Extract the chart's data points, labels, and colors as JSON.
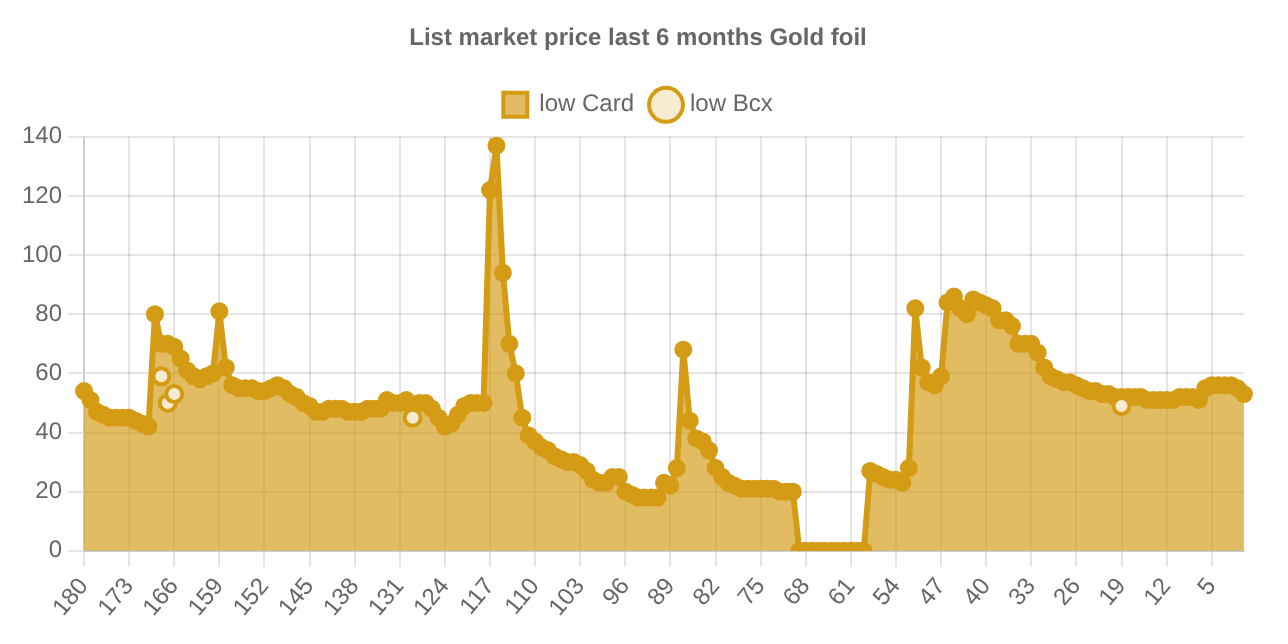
{
  "chart_data": {
    "type": "area",
    "title": "List market price last 6 months Gold foil",
    "categories": [
      "180",
      null,
      null,
      null,
      null,
      null,
      null,
      "173",
      null,
      null,
      null,
      null,
      null,
      null,
      "166",
      null,
      null,
      null,
      null,
      null,
      null,
      "159",
      null,
      null,
      null,
      null,
      null,
      null,
      "152",
      null,
      null,
      null,
      null,
      null,
      null,
      "145",
      null,
      null,
      null,
      null,
      null,
      null,
      "138",
      null,
      null,
      null,
      null,
      null,
      null,
      "131",
      null,
      null,
      null,
      null,
      null,
      null,
      "124",
      null,
      null,
      null,
      null,
      null,
      null,
      "117",
      null,
      null,
      null,
      null,
      null,
      null,
      "110",
      null,
      null,
      null,
      null,
      null,
      null,
      "103",
      null,
      null,
      null,
      null,
      null,
      null,
      "96",
      null,
      null,
      null,
      null,
      null,
      null,
      "89",
      null,
      null,
      null,
      null,
      null,
      null,
      "82",
      null,
      null,
      null,
      null,
      null,
      null,
      "75",
      null,
      null,
      null,
      null,
      null,
      null,
      "68",
      null,
      null,
      null,
      null,
      null,
      null,
      "61",
      null,
      null,
      null,
      null,
      null,
      null,
      "54",
      null,
      null,
      null,
      null,
      null,
      null,
      "47",
      null,
      null,
      null,
      null,
      null,
      null,
      "40",
      null,
      null,
      null,
      null,
      null,
      null,
      "33",
      null,
      null,
      null,
      null,
      null,
      null,
      "26",
      null,
      null,
      null,
      null,
      null,
      null,
      "19",
      null,
      null,
      null,
      null,
      null,
      null,
      "12",
      null,
      null,
      null,
      null,
      null,
      null,
      "5",
      null,
      null,
      null,
      null,
      null
    ],
    "series": [
      {
        "name": "low Card",
        "color": "#d49b14",
        "values": [
          54,
          51,
          47,
          46,
          45,
          45,
          45,
          45,
          44,
          43,
          42,
          80,
          70,
          70,
          69,
          65,
          61,
          59,
          58,
          59,
          60,
          81,
          62,
          56,
          55,
          55,
          55,
          54,
          54,
          55,
          56,
          55,
          53,
          52,
          50,
          49,
          47,
          47,
          48,
          48,
          48,
          47,
          47,
          47,
          48,
          48,
          48,
          51,
          50,
          50,
          51,
          48,
          50,
          50,
          48,
          45,
          42,
          43,
          46,
          49,
          50,
          50,
          50,
          122,
          137,
          94,
          70,
          60,
          45,
          39,
          37,
          35,
          34,
          32,
          31,
          30,
          30,
          29,
          27,
          24,
          23,
          23,
          25,
          25,
          20,
          19,
          18,
          18,
          18,
          18,
          23,
          22,
          28,
          68,
          44,
          38,
          37,
          34,
          28,
          25,
          23,
          22,
          21,
          21,
          21,
          21,
          21,
          21,
          20,
          20,
          20,
          0,
          0,
          0,
          0,
          0,
          0,
          0,
          0,
          0,
          0,
          0,
          27,
          26,
          25,
          24,
          24,
          23,
          28,
          82,
          62,
          57,
          56,
          59,
          84,
          86,
          82,
          80,
          85,
          84,
          83,
          82,
          78,
          78,
          76,
          70,
          70,
          70,
          67,
          62,
          59,
          58,
          57,
          57,
          56,
          55,
          54,
          54,
          53,
          53,
          52,
          52,
          52,
          52,
          52,
          51,
          51,
          51,
          51,
          51,
          52,
          52,
          52,
          51,
          55,
          56,
          56,
          56,
          56,
          55,
          53
        ]
      },
      {
        "name": "low Bcx",
        "type": "scatter",
        "color": "#d49b14",
        "values": [
          null,
          null,
          null,
          null,
          null,
          null,
          null,
          null,
          null,
          null,
          null,
          null,
          59,
          50,
          53,
          null,
          null,
          null,
          null,
          null,
          null,
          null,
          null,
          null,
          null,
          null,
          null,
          null,
          null,
          null,
          null,
          null,
          null,
          null,
          null,
          null,
          null,
          null,
          null,
          null,
          null,
          null,
          null,
          null,
          null,
          null,
          null,
          null,
          null,
          null,
          null,
          45,
          null,
          null,
          null,
          null,
          null,
          null,
          null,
          null,
          null,
          null,
          null,
          null,
          null,
          null,
          null,
          null,
          null,
          null,
          null,
          null,
          null,
          null,
          null,
          null,
          null,
          null,
          null,
          null,
          null,
          null,
          null,
          null,
          null,
          null,
          null,
          null,
          null,
          null,
          null,
          null,
          null,
          null,
          null,
          null,
          null,
          null,
          null,
          null,
          null,
          null,
          null,
          null,
          null,
          null,
          null,
          null,
          null,
          null,
          null,
          null,
          null,
          null,
          null,
          null,
          null,
          null,
          null,
          null,
          null,
          null,
          null,
          null,
          null,
          null,
          null,
          null,
          null,
          null,
          null,
          null,
          null,
          null,
          null,
          null,
          null,
          null,
          null,
          null,
          null,
          null,
          null,
          null,
          null,
          null,
          null,
          null,
          null,
          null,
          null,
          null,
          null,
          null,
          null,
          null,
          null,
          null,
          null,
          null,
          null,
          49,
          null,
          null,
          null,
          null,
          null,
          null,
          null,
          null,
          null,
          null,
          null,
          null,
          null,
          null,
          null,
          null,
          null,
          null,
          null
        ]
      }
    ],
    "ylim": [
      0,
      140
    ],
    "yticks": [
      0,
      20,
      40,
      60,
      80,
      100,
      120,
      140
    ],
    "grid": true,
    "legend": "top",
    "marker": "circle",
    "line_style": "solid"
  }
}
